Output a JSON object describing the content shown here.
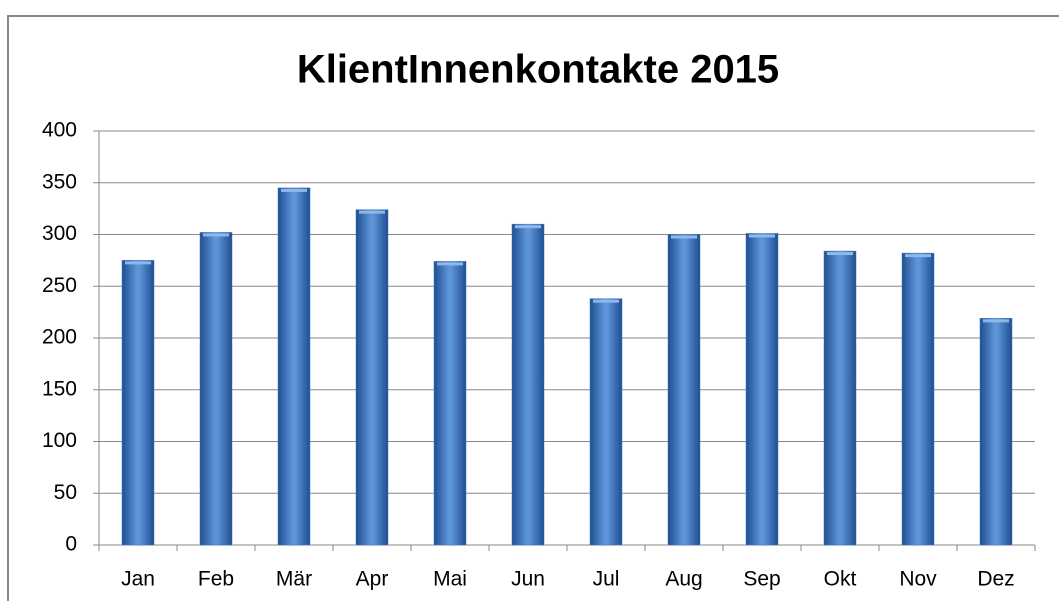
{
  "chart_data": {
    "type": "bar",
    "title": "KlientInnenkontakte 2015",
    "categories": [
      "Jan",
      "Feb",
      "Mär",
      "Apr",
      "Mai",
      "Jun",
      "Jul",
      "Aug",
      "Sep",
      "Okt",
      "Nov",
      "Dez"
    ],
    "values": [
      275,
      302,
      345,
      324,
      274,
      310,
      238,
      300,
      301,
      284,
      282,
      219
    ],
    "color": "#3f76c2",
    "ylim": [
      0,
      400
    ],
    "yticks": [
      0,
      50,
      100,
      150,
      200,
      250,
      300,
      350,
      400
    ],
    "grid": true
  }
}
